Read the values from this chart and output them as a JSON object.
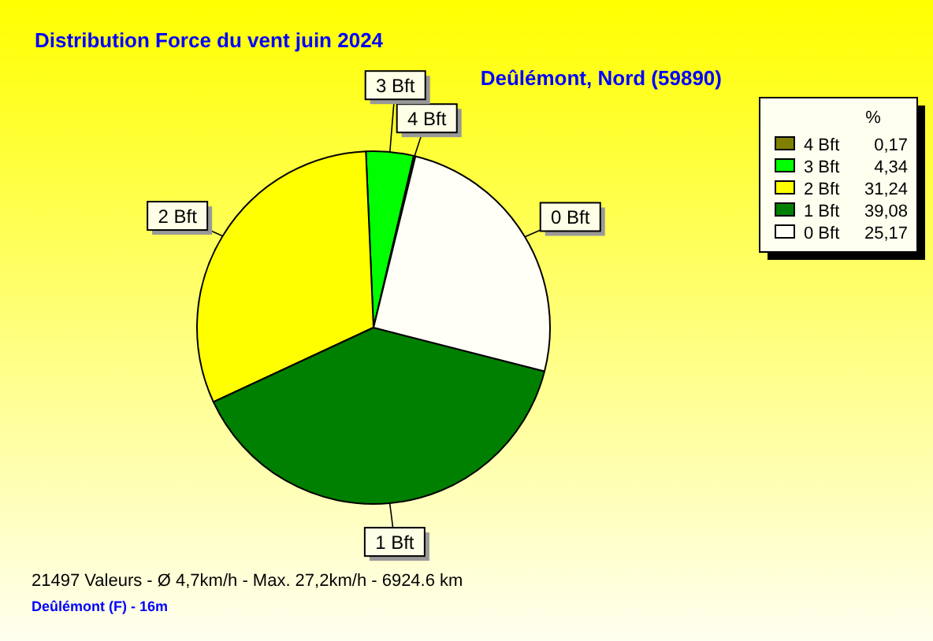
{
  "chart_data": {
    "type": "pie",
    "title": "Distribution Force du vent  juin 2024",
    "subtitle": "Deûlémont, Nord (59890)",
    "categories": [
      "4 Bft",
      "3 Bft",
      "2 Bft",
      "1 Bft",
      "0 Bft"
    ],
    "values": [
      0.17,
      4.34,
      31.24,
      39.08,
      25.17
    ],
    "value_labels": [
      "0,17",
      "4,34",
      "31,24",
      "39,08",
      "25,17"
    ],
    "colors": [
      "#808000",
      "#00ff00",
      "#ffff00",
      "#008000",
      "#fffff8"
    ],
    "legend": "top right",
    "legend_title": "%",
    "annotations": [
      "21497 Valeurs   -   Ø 4,7km/h  -  Max. 27,2km/h   -   6924.6 km",
      "Deûlémont (F) - 16m"
    ]
  }
}
